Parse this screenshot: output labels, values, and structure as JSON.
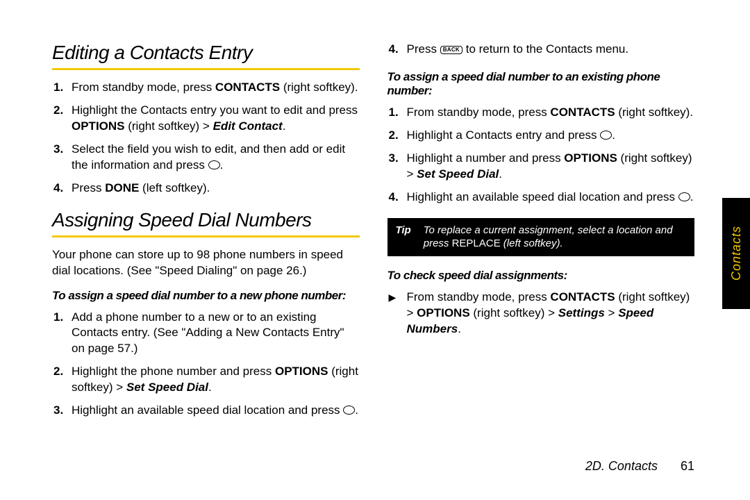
{
  "accent_color": "#f2c800",
  "side_tab": {
    "label": "Contacts",
    "bg": "#000000",
    "fg": "#f2c800"
  },
  "left": {
    "heading1": "Editing a Contacts Entry",
    "steps1": [
      {
        "pre": "From standby mode, press ",
        "bold": "CONTACTS",
        "post": " (right softkey)."
      },
      {
        "pre": "Highlight the Contacts entry you want to edit and press ",
        "bold": "OPTIONS",
        "mid": " (right softkey) > ",
        "bi": "Edit Contact",
        "post": "."
      },
      {
        "pre": "Select the field you wish to edit, and then add or edit the information and press ",
        "circle": true,
        "post": "."
      },
      {
        "pre": "Press ",
        "bold": "DONE",
        "post": " (left softkey)."
      }
    ],
    "heading2": "Assigning Speed Dial Numbers",
    "intro": "Your phone can store up to 98 phone numbers in speed dial locations. (See \"Speed Dialing\" on page 26.)",
    "subhead1": "To assign a speed dial number to a new phone number:",
    "steps2": [
      {
        "pre": "Add a phone number to a new or to an existing Contacts entry. (See \"Adding a New Contacts Entry\" on page 57.)"
      },
      {
        "pre": "Highlight the phone number and press ",
        "bold": "OPTIONS",
        "mid": " (right softkey) > ",
        "bi": "Set Speed Dial",
        "post": "."
      },
      {
        "pre": "Highlight an available speed dial location and press ",
        "circle": true,
        "post": "."
      }
    ]
  },
  "right": {
    "steps_cont": [
      {
        "n": 4,
        "pre": "Press ",
        "back": true,
        "post": " to return to the Contacts menu."
      }
    ],
    "subhead2": "To assign a speed dial number to an existing phone number:",
    "steps3": [
      {
        "pre": "From standby mode, press ",
        "bold": "CONTACTS",
        "post": " (right softkey)."
      },
      {
        "pre": "Highlight a Contacts entry and press ",
        "circle": true,
        "post": "."
      },
      {
        "pre": "Highlight a number and press ",
        "bold": "OPTIONS",
        "mid": " (right softkey) > ",
        "bi": "Set Speed Dial",
        "post": "."
      },
      {
        "pre": "Highlight an available speed dial location and press ",
        "circle": true,
        "post": "."
      }
    ],
    "tip": {
      "label": "Tip",
      "body_pre": "To replace a current assignment, select a location and press ",
      "roman": "REPLACE",
      "body_post": " (left softkey)."
    },
    "subhead3": "To check speed dial assignments:",
    "check": {
      "pre": "From standby mode, press ",
      "b1": "CONTACTS",
      "t1": " (right softkey) > ",
      "b2": "OPTIONS",
      "t2": " (right softkey) > ",
      "bi1": "Settings",
      "t3": " > ",
      "bi2": "Speed Numbers",
      "post": "."
    }
  },
  "footer": {
    "section": "2D. Contacts",
    "page": "61"
  },
  "back_key_label": "BACK"
}
